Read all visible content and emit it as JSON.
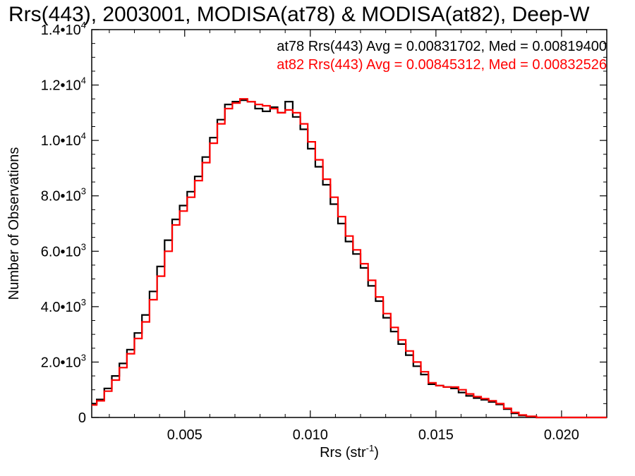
{
  "chart_data": {
    "type": "line",
    "title": "Rrs(443), 2003001, MODISA(at78) & MODISA(at82), Deep-W",
    "xlabel": "Rrs (str",
    "xlabel_sup": "-1",
    "xlabel_close": ")",
    "ylabel": "Number of Observations",
    "xlim": [
      0.0013,
      0.0218
    ],
    "ylim": [
      0,
      14000
    ],
    "grid": false,
    "legend_position": "top-right",
    "x_ticks": [
      {
        "value": 0.005,
        "label": "0.005"
      },
      {
        "value": 0.01,
        "label": "0.010"
      },
      {
        "value": 0.015,
        "label": "0.015"
      },
      {
        "value": 0.02,
        "label": "0.020"
      }
    ],
    "y_ticks": [
      {
        "value": 0,
        "mant": "0",
        "exp": ""
      },
      {
        "value": 2000,
        "mant": "2.0•10",
        "exp": "3"
      },
      {
        "value": 4000,
        "mant": "4.0•10",
        "exp": "3"
      },
      {
        "value": 6000,
        "mant": "6.0•10",
        "exp": "3"
      },
      {
        "value": 8000,
        "mant": "8.0•10",
        "exp": "3"
      },
      {
        "value": 10000,
        "mant": "1.0•10",
        "exp": "4"
      },
      {
        "value": 12000,
        "mant": "1.2•10",
        "exp": "4"
      },
      {
        "value": 14000,
        "mant": "1.4•10",
        "exp": "4"
      }
    ],
    "series": [
      {
        "label": "at78 Rrs(443) Avg = 0.00831702, Med = 0.00819400",
        "color": "#000000",
        "x": [
          0.0013,
          0.0015,
          0.0018,
          0.0021,
          0.0024,
          0.0027,
          0.003,
          0.0033,
          0.0036,
          0.0039,
          0.0042,
          0.0045,
          0.0048,
          0.0051,
          0.0054,
          0.0057,
          0.006,
          0.0063,
          0.0066,
          0.0069,
          0.0072,
          0.0075,
          0.0078,
          0.0081,
          0.0084,
          0.0087,
          0.009,
          0.0093,
          0.0096,
          0.0099,
          0.0102,
          0.0105,
          0.0108,
          0.0111,
          0.0114,
          0.0117,
          0.012,
          0.0123,
          0.0126,
          0.0129,
          0.0132,
          0.0135,
          0.0138,
          0.0141,
          0.0144,
          0.0147,
          0.015,
          0.0153,
          0.0156,
          0.0159,
          0.0162,
          0.0165,
          0.0168,
          0.0171,
          0.0174,
          0.0177,
          0.018,
          0.0183,
          0.0186,
          0.019,
          0.02,
          0.0218
        ],
        "y": [
          500,
          650,
          1050,
          1500,
          1950,
          2450,
          3050,
          3700,
          4550,
          5450,
          6400,
          7150,
          7650,
          8150,
          8700,
          9400,
          10100,
          10750,
          11300,
          11400,
          11450,
          11400,
          11150,
          11050,
          11200,
          11000,
          11400,
          10850,
          10400,
          9700,
          9050,
          8400,
          7700,
          7000,
          6350,
          5900,
          5400,
          4750,
          4200,
          3600,
          3100,
          2650,
          2250,
          1850,
          1550,
          1200,
          1150,
          1100,
          1050,
          900,
          780,
          700,
          640,
          560,
          470,
          300,
          150,
          70,
          30,
          0,
          0,
          0
        ]
      },
      {
        "label": "at82 Rrs(443) Avg = 0.00845312, Med = 0.00832526",
        "color": "#ff0000",
        "x": [
          0.0013,
          0.0015,
          0.0018,
          0.0021,
          0.0024,
          0.0027,
          0.003,
          0.0033,
          0.0036,
          0.0039,
          0.0042,
          0.0045,
          0.0048,
          0.0051,
          0.0054,
          0.0057,
          0.006,
          0.0063,
          0.0066,
          0.0069,
          0.0072,
          0.0075,
          0.0078,
          0.0081,
          0.0084,
          0.0087,
          0.009,
          0.0093,
          0.0096,
          0.0099,
          0.0102,
          0.0105,
          0.0108,
          0.0111,
          0.0114,
          0.0117,
          0.012,
          0.0123,
          0.0126,
          0.0129,
          0.0132,
          0.0135,
          0.0138,
          0.0141,
          0.0144,
          0.0147,
          0.015,
          0.0153,
          0.0156,
          0.0159,
          0.0162,
          0.0165,
          0.0168,
          0.0171,
          0.0174,
          0.0177,
          0.018,
          0.0183,
          0.0186,
          0.019,
          0.02,
          0.0218
        ],
        "y": [
          450,
          600,
          950,
          1350,
          1800,
          2300,
          2850,
          3450,
          4250,
          5100,
          6000,
          6950,
          7450,
          7950,
          8550,
          9200,
          9900,
          10600,
          11150,
          11350,
          11500,
          11400,
          11300,
          11250,
          11150,
          11000,
          11100,
          11000,
          10600,
          9950,
          9300,
          8600,
          7950,
          7250,
          6550,
          6050,
          5550,
          4950,
          4350,
          3750,
          3250,
          2800,
          2400,
          2000,
          1650,
          1250,
          1150,
          1100,
          1100,
          1000,
          850,
          750,
          680,
          600,
          500,
          330,
          180,
          90,
          40,
          0,
          0,
          0
        ]
      }
    ]
  }
}
